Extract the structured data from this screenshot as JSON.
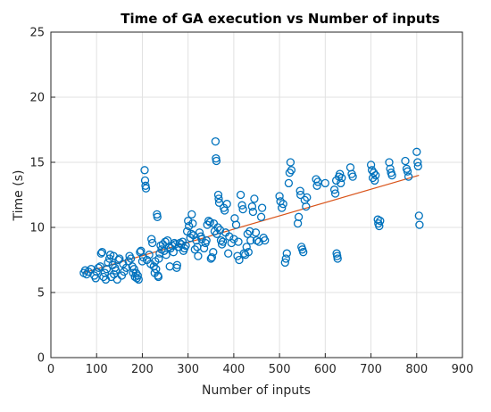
{
  "chart_data": {
    "type": "scatter",
    "title": "Time of GA execution vs Number of inputs",
    "xlabel": "Number of inputs",
    "ylabel": "Time (s)",
    "xlim": [
      0,
      900
    ],
    "ylim": [
      0,
      25
    ],
    "xticks": [
      0,
      100,
      200,
      300,
      400,
      500,
      600,
      700,
      800,
      900
    ],
    "yticks": [
      0,
      5,
      10,
      15,
      20,
      25
    ],
    "grid": true,
    "colors": {
      "points": "#0072BD",
      "trend": "#D95319",
      "grid": "#e1e1e1",
      "axis": "#262626"
    },
    "series": [
      {
        "type": "scatter",
        "marker": "circle-open",
        "points": [
          [
            72,
            6.5
          ],
          [
            75,
            6.7
          ],
          [
            78,
            6.4
          ],
          [
            82,
            6.6
          ],
          [
            88,
            6.8
          ],
          [
            95,
            6.3
          ],
          [
            98,
            6.1
          ],
          [
            100,
            6.6
          ],
          [
            104,
            6.9
          ],
          [
            108,
            7.0
          ],
          [
            110,
            8.0
          ],
          [
            112,
            8.1
          ],
          [
            115,
            6.2
          ],
          [
            118,
            6.5
          ],
          [
            120,
            6.0
          ],
          [
            122,
            6.8
          ],
          [
            125,
            7.3
          ],
          [
            128,
            7.6
          ],
          [
            130,
            7.9
          ],
          [
            132,
            6.2
          ],
          [
            135,
            7.1
          ],
          [
            137,
            7.8
          ],
          [
            138,
            6.4
          ],
          [
            140,
            6.9
          ],
          [
            142,
            6.7
          ],
          [
            145,
            6.0
          ],
          [
            148,
            7.5
          ],
          [
            150,
            7.6
          ],
          [
            155,
            6.3
          ],
          [
            158,
            7.2
          ],
          [
            160,
            6.6
          ],
          [
            165,
            6.9
          ],
          [
            170,
            7.4
          ],
          [
            172,
            7.8
          ],
          [
            175,
            7.6
          ],
          [
            178,
            7.0
          ],
          [
            180,
            6.5
          ],
          [
            182,
            6.8
          ],
          [
            184,
            6.2
          ],
          [
            186,
            6.5
          ],
          [
            188,
            6.1
          ],
          [
            190,
            6.3
          ],
          [
            192,
            6.0
          ],
          [
            195,
            8.1
          ],
          [
            197,
            8.2
          ],
          [
            200,
            7.4
          ],
          [
            202,
            7.7
          ],
          [
            205,
            14.4
          ],
          [
            206,
            13.6
          ],
          [
            207,
            13.2
          ],
          [
            208,
            13.0
          ],
          [
            210,
            7.5
          ],
          [
            215,
            7.9
          ],
          [
            218,
            7.2
          ],
          [
            220,
            9.1
          ],
          [
            222,
            8.8
          ],
          [
            225,
            7.0
          ],
          [
            227,
            6.5
          ],
          [
            228,
            7.4
          ],
          [
            230,
            6.8
          ],
          [
            232,
            11.0
          ],
          [
            233,
            10.8
          ],
          [
            234,
            6.3
          ],
          [
            235,
            6.2
          ],
          [
            236,
            7.6
          ],
          [
            238,
            8.0
          ],
          [
            240,
            8.6
          ],
          [
            242,
            8.3
          ],
          [
            245,
            8.7
          ],
          [
            248,
            8.2
          ],
          [
            250,
            8.9
          ],
          [
            252,
            7.9
          ],
          [
            255,
            9.0
          ],
          [
            258,
            8.5
          ],
          [
            260,
            7.0
          ],
          [
            262,
            8.4
          ],
          [
            265,
            8.6
          ],
          [
            268,
            8.1
          ],
          [
            270,
            8.8
          ],
          [
            272,
            8.7
          ],
          [
            275,
            6.9
          ],
          [
            276,
            7.1
          ],
          [
            280,
            8.5
          ],
          [
            282,
            8.8
          ],
          [
            285,
            8.7
          ],
          [
            288,
            8.9
          ],
          [
            290,
            8.2
          ],
          [
            292,
            8.4
          ],
          [
            295,
            8.6
          ],
          [
            298,
            9.7
          ],
          [
            300,
            10.5
          ],
          [
            302,
            10.1
          ],
          [
            305,
            9.2
          ],
          [
            307,
            9.5
          ],
          [
            308,
            11.0
          ],
          [
            310,
            10.3
          ],
          [
            312,
            9.4
          ],
          [
            315,
            8.3
          ],
          [
            318,
            9.0
          ],
          [
            320,
            8.5
          ],
          [
            322,
            7.8
          ],
          [
            325,
            9.6
          ],
          [
            328,
            9.3
          ],
          [
            330,
            9.1
          ],
          [
            335,
            8.4
          ],
          [
            338,
            8.8
          ],
          [
            340,
            9.0
          ],
          [
            342,
            10.2
          ],
          [
            345,
            10.5
          ],
          [
            348,
            10.4
          ],
          [
            350,
            7.6
          ],
          [
            352,
            7.7
          ],
          [
            355,
            8.1
          ],
          [
            356,
            10.3
          ],
          [
            358,
            9.7
          ],
          [
            360,
            16.6
          ],
          [
            361,
            15.3
          ],
          [
            362,
            15.1
          ],
          [
            363,
            9.5
          ],
          [
            365,
            10.0
          ],
          [
            366,
            12.5
          ],
          [
            367,
            12.2
          ],
          [
            368,
            11.9
          ],
          [
            370,
            9.8
          ],
          [
            372,
            9.0
          ],
          [
            374,
            8.7
          ],
          [
            376,
            8.9
          ],
          [
            378,
            11.5
          ],
          [
            380,
            11.3
          ],
          [
            382,
            9.6
          ],
          [
            385,
            11.8
          ],
          [
            388,
            8.0
          ],
          [
            390,
            9.3
          ],
          [
            395,
            8.8
          ],
          [
            400,
            9.1
          ],
          [
            402,
            10.7
          ],
          [
            405,
            10.2
          ],
          [
            408,
            7.8
          ],
          [
            410,
            8.9
          ],
          [
            412,
            7.5
          ],
          [
            415,
            12.5
          ],
          [
            418,
            11.7
          ],
          [
            420,
            11.4
          ],
          [
            422,
            8.0
          ],
          [
            425,
            7.9
          ],
          [
            428,
            8.5
          ],
          [
            430,
            9.5
          ],
          [
            432,
            8.1
          ],
          [
            435,
            9.7
          ],
          [
            437,
            9.0
          ],
          [
            440,
            11.6
          ],
          [
            442,
            11.2
          ],
          [
            445,
            12.2
          ],
          [
            448,
            9.6
          ],
          [
            450,
            9.0
          ],
          [
            455,
            8.9
          ],
          [
            460,
            10.8
          ],
          [
            462,
            11.5
          ],
          [
            465,
            9.2
          ],
          [
            468,
            9.0
          ],
          [
            500,
            12.4
          ],
          [
            502,
            12.0
          ],
          [
            505,
            11.5
          ],
          [
            508,
            11.8
          ],
          [
            512,
            7.3
          ],
          [
            514,
            7.6
          ],
          [
            516,
            8.0
          ],
          [
            520,
            13.4
          ],
          [
            522,
            14.2
          ],
          [
            524,
            15.0
          ],
          [
            526,
            14.4
          ],
          [
            540,
            10.3
          ],
          [
            542,
            10.8
          ],
          [
            545,
            12.8
          ],
          [
            546,
            12.5
          ],
          [
            548,
            8.5
          ],
          [
            550,
            8.3
          ],
          [
            552,
            8.1
          ],
          [
            555,
            12.1
          ],
          [
            558,
            11.6
          ],
          [
            560,
            12.3
          ],
          [
            580,
            13.7
          ],
          [
            582,
            13.2
          ],
          [
            584,
            13.5
          ],
          [
            600,
            13.4
          ],
          [
            620,
            12.9
          ],
          [
            622,
            12.6
          ],
          [
            624,
            13.6
          ],
          [
            625,
            8.0
          ],
          [
            626,
            7.8
          ],
          [
            627,
            7.6
          ],
          [
            630,
            13.9
          ],
          [
            632,
            14.1
          ],
          [
            634,
            13.4
          ],
          [
            636,
            13.8
          ],
          [
            655,
            14.6
          ],
          [
            658,
            14.1
          ],
          [
            660,
            13.9
          ],
          [
            700,
            14.8
          ],
          [
            702,
            14.4
          ],
          [
            704,
            13.8
          ],
          [
            706,
            14.2
          ],
          [
            708,
            13.6
          ],
          [
            710,
            14.0
          ],
          [
            715,
            10.6
          ],
          [
            716,
            10.3
          ],
          [
            718,
            10.1
          ],
          [
            720,
            10.5
          ],
          [
            740,
            15.0
          ],
          [
            742,
            14.5
          ],
          [
            744,
            14.2
          ],
          [
            746,
            14.0
          ],
          [
            775,
            15.1
          ],
          [
            778,
            14.5
          ],
          [
            780,
            14.3
          ],
          [
            782,
            13.9
          ],
          [
            800,
            15.8
          ],
          [
            802,
            15.0
          ],
          [
            803,
            14.7
          ],
          [
            805,
            10.9
          ],
          [
            806,
            10.2
          ]
        ]
      },
      {
        "type": "line",
        "points": [
          [
            70,
            6.5
          ],
          [
            805,
            14.0
          ]
        ]
      }
    ]
  }
}
